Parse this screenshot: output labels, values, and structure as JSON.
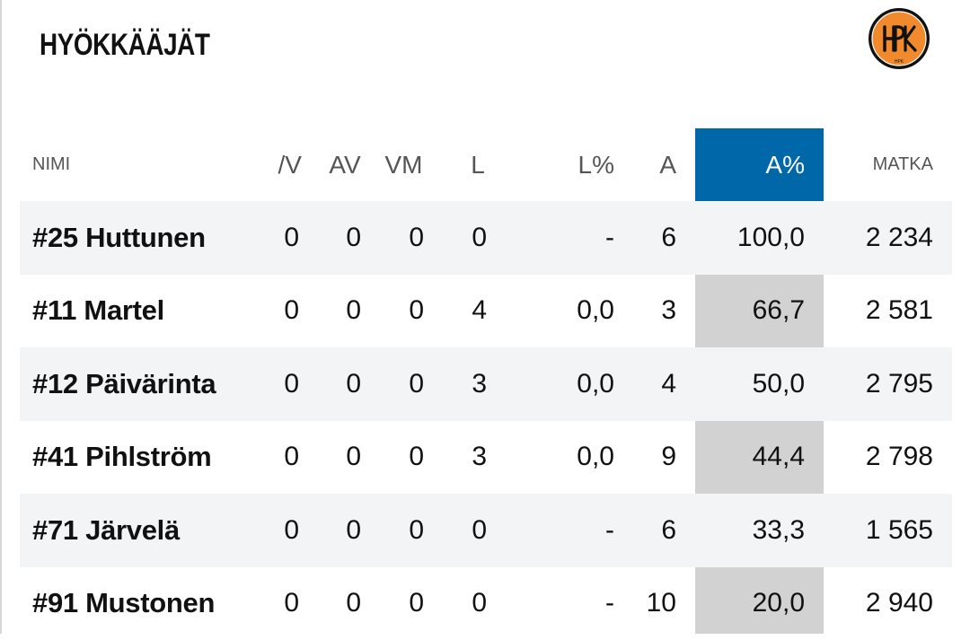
{
  "section": {
    "title": "HYÖKKÄÄJÄT",
    "logo_text": "HPK",
    "logo_icon": "hpk-team-logo-icon"
  },
  "colors": {
    "active_header": "#0068a8",
    "highlight_column": "#d2d2d2",
    "stripe": "#f3f4f6",
    "logo_orange": "#f08a2c",
    "logo_dark": "#111111"
  },
  "table": {
    "columns": [
      "NIMI",
      "/V",
      "AV",
      "VM",
      "L",
      "L%",
      "A",
      "A%",
      "MATKA"
    ],
    "sorted_column": "A%",
    "rows": [
      {
        "name": "#25 Huttunen",
        "vv": "0",
        "av": "0",
        "vm": "0",
        "l": "0",
        "lp": "-",
        "a": "6",
        "ap": "100,0",
        "matka": "2 234"
      },
      {
        "name": "#11 Martel",
        "vv": "0",
        "av": "0",
        "vm": "0",
        "l": "4",
        "lp": "0,0",
        "a": "3",
        "ap": "66,7",
        "matka": "2 581"
      },
      {
        "name": "#12 Päivärinta",
        "vv": "0",
        "av": "0",
        "vm": "0",
        "l": "3",
        "lp": "0,0",
        "a": "4",
        "ap": "50,0",
        "matka": "2 795"
      },
      {
        "name": "#41 Pihlström",
        "vv": "0",
        "av": "0",
        "vm": "0",
        "l": "3",
        "lp": "0,0",
        "a": "9",
        "ap": "44,4",
        "matka": "2 798"
      },
      {
        "name": "#71 Järvelä",
        "vv": "0",
        "av": "0",
        "vm": "0",
        "l": "0",
        "lp": "-",
        "a": "6",
        "ap": "33,3",
        "matka": "1 565"
      },
      {
        "name": "#91 Mustonen",
        "vv": "0",
        "av": "0",
        "vm": "0",
        "l": "0",
        "lp": "-",
        "a": "10",
        "ap": "20,0",
        "matka": "2 940"
      }
    ]
  }
}
